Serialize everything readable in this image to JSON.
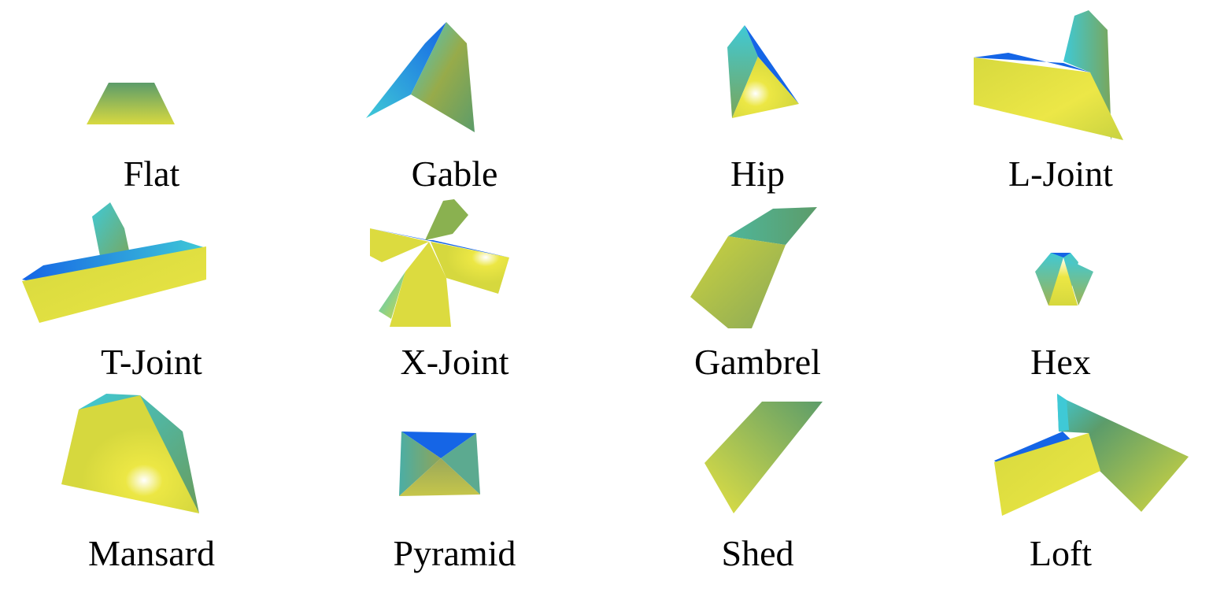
{
  "figure": {
    "roof_types": [
      {
        "label": "Flat",
        "icon": "flat-roof-icon"
      },
      {
        "label": "Gable",
        "icon": "gable-roof-icon"
      },
      {
        "label": "Hip",
        "icon": "hip-roof-icon"
      },
      {
        "label": "L-Joint",
        "icon": "l-joint-roof-icon"
      },
      {
        "label": "T-Joint",
        "icon": "t-joint-roof-icon"
      },
      {
        "label": "X-Joint",
        "icon": "x-joint-roof-icon"
      },
      {
        "label": "Gambrel",
        "icon": "gambrel-roof-icon"
      },
      {
        "label": "Hex",
        "icon": "hex-roof-icon"
      },
      {
        "label": "Mansard",
        "icon": "mansard-roof-icon"
      },
      {
        "label": "Pyramid",
        "icon": "pyramid-roof-icon"
      },
      {
        "label": "Shed",
        "icon": "shed-roof-icon"
      },
      {
        "label": "Loft",
        "icon": "loft-roof-icon"
      }
    ],
    "colors": {
      "yellow": "#e6e23a",
      "olive": "#97ab4a",
      "green": "#5c9c6a",
      "cyan": "#3fc9d6",
      "blue": "#1565e6",
      "highlight": "#ffffff"
    }
  }
}
